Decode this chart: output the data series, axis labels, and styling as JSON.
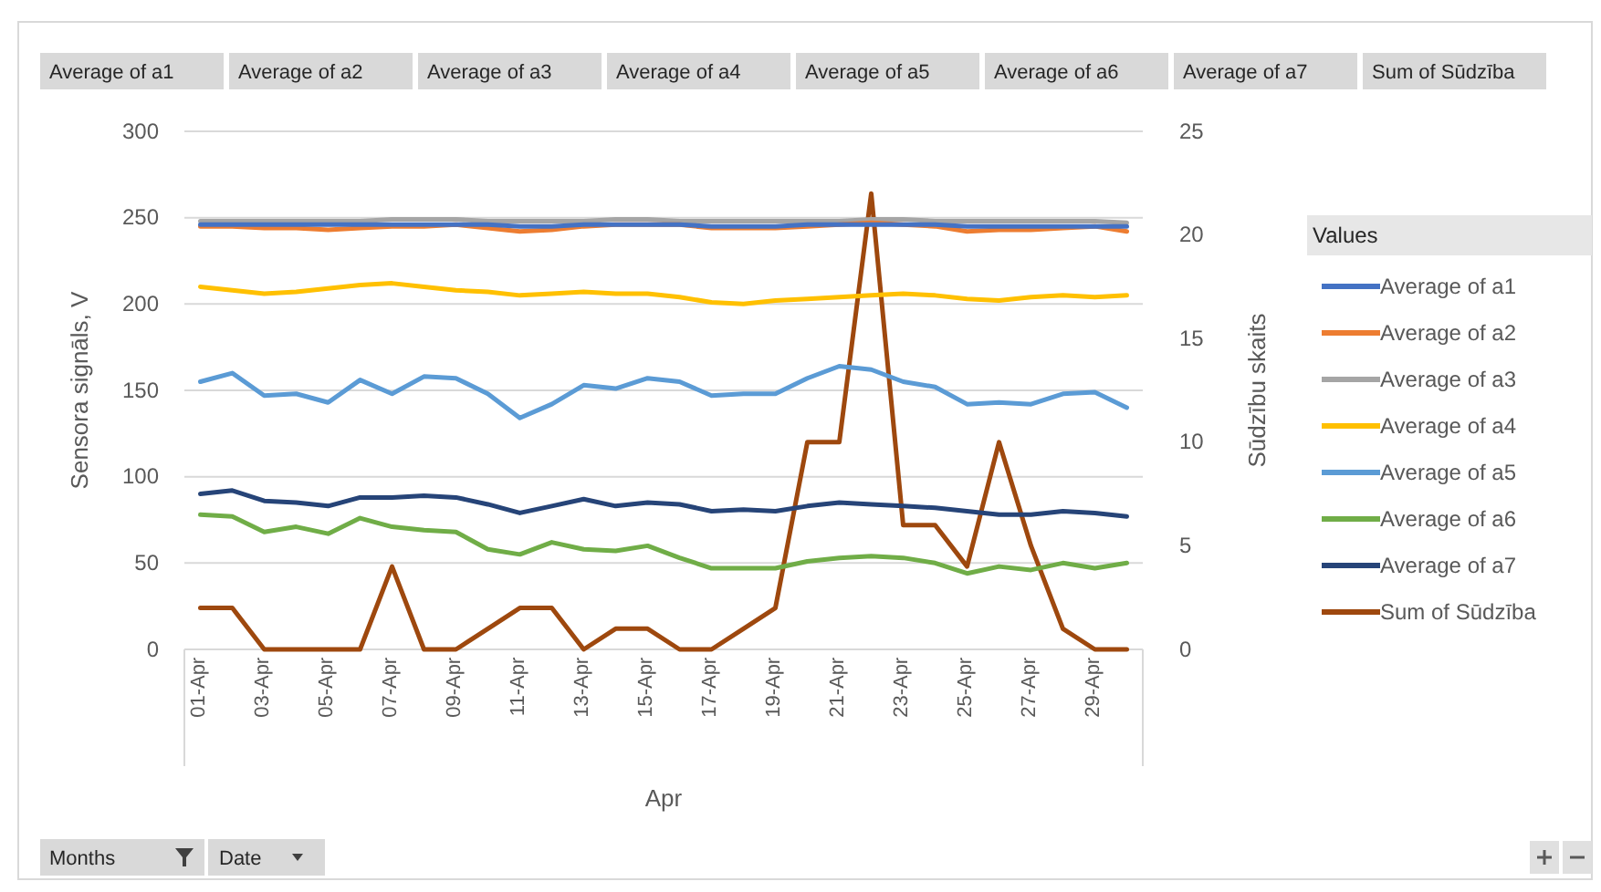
{
  "chart_data": {
    "type": "line",
    "xlabel": "Apr",
    "ylabel": "Sensora signāls, V",
    "y2label": "Sūdzību skaits",
    "legend_title": "Values",
    "legend": "right",
    "grid": "y",
    "categories": [
      "01-Apr",
      null,
      "03-Apr",
      null,
      "05-Apr",
      null,
      "07-Apr",
      null,
      "09-Apr",
      null,
      "11-Apr",
      null,
      "13-Apr",
      null,
      "15-Apr",
      null,
      "17-Apr",
      null,
      "19-Apr",
      null,
      "21-Apr",
      null,
      "23-Apr",
      null,
      "25-Apr",
      null,
      "27-Apr",
      null,
      "29-Apr",
      null
    ],
    "ylim": [
      0,
      300
    ],
    "yticks": [
      0,
      50,
      100,
      150,
      200,
      250,
      300
    ],
    "y2lim": [
      0,
      25
    ],
    "y2ticks": [
      0,
      5,
      10,
      15,
      20,
      25
    ],
    "series": [
      {
        "name": "Average of a1",
        "color": "#4472c4",
        "values": [
          246,
          246,
          246,
          246,
          246,
          246,
          246,
          246,
          246,
          246,
          245,
          245,
          246,
          246,
          246,
          246,
          245,
          245,
          245,
          246,
          246,
          246,
          246,
          246,
          245,
          245,
          245,
          245,
          245,
          245
        ]
      },
      {
        "name": "Average of a2",
        "color": "#ed7d31",
        "values": [
          245,
          245,
          244,
          244,
          243,
          244,
          245,
          245,
          246,
          244,
          242,
          243,
          245,
          246,
          246,
          246,
          244,
          244,
          244,
          245,
          246,
          247,
          246,
          245,
          242,
          243,
          243,
          244,
          245,
          242
        ]
      },
      {
        "name": "Average of a3",
        "color": "#a5a5a5",
        "values": [
          248,
          248,
          248,
          248,
          248,
          248,
          249,
          249,
          249,
          248,
          248,
          248,
          248,
          249,
          249,
          248,
          248,
          248,
          248,
          248,
          248,
          249,
          249,
          248,
          248,
          248,
          248,
          248,
          248,
          247
        ]
      },
      {
        "name": "Average of a4",
        "color": "#ffc000",
        "values": [
          210,
          208,
          206,
          207,
          209,
          211,
          212,
          210,
          208,
          207,
          205,
          206,
          207,
          206,
          206,
          204,
          201,
          200,
          202,
          203,
          204,
          205,
          206,
          205,
          203,
          202,
          204,
          205,
          204,
          205
        ]
      },
      {
        "name": "Average of a5",
        "color": "#5b9bd5",
        "values": [
          155,
          160,
          147,
          148,
          143,
          156,
          148,
          158,
          157,
          148,
          134,
          142,
          153,
          151,
          157,
          155,
          147,
          148,
          148,
          157,
          164,
          162,
          155,
          152,
          142,
          143,
          142,
          148,
          149,
          140
        ]
      },
      {
        "name": "Average of a6",
        "color": "#70ad47",
        "values": [
          78,
          77,
          68,
          71,
          67,
          76,
          71,
          69,
          68,
          58,
          55,
          62,
          58,
          57,
          60,
          53,
          47,
          47,
          47,
          51,
          53,
          54,
          53,
          50,
          44,
          48,
          46,
          50,
          47,
          50
        ]
      },
      {
        "name": "Average of a7",
        "color": "#264478",
        "values": [
          90,
          92,
          86,
          85,
          83,
          88,
          88,
          89,
          88,
          84,
          79,
          83,
          87,
          83,
          85,
          84,
          80,
          81,
          80,
          83,
          85,
          84,
          83,
          82,
          80,
          78,
          78,
          80,
          79,
          77
        ]
      },
      {
        "name": "Sum of Sūdzība",
        "color": "#9e480e",
        "axis": "y2",
        "values": [
          2,
          2,
          0,
          0,
          0,
          0,
          4,
          0,
          0,
          1,
          2,
          2,
          0,
          1,
          1,
          0,
          0,
          1,
          2,
          10,
          10,
          22,
          6,
          6,
          4,
          10,
          5,
          1,
          0,
          0
        ]
      }
    ],
    "annotations": [
      "Months",
      "Date"
    ]
  }
}
